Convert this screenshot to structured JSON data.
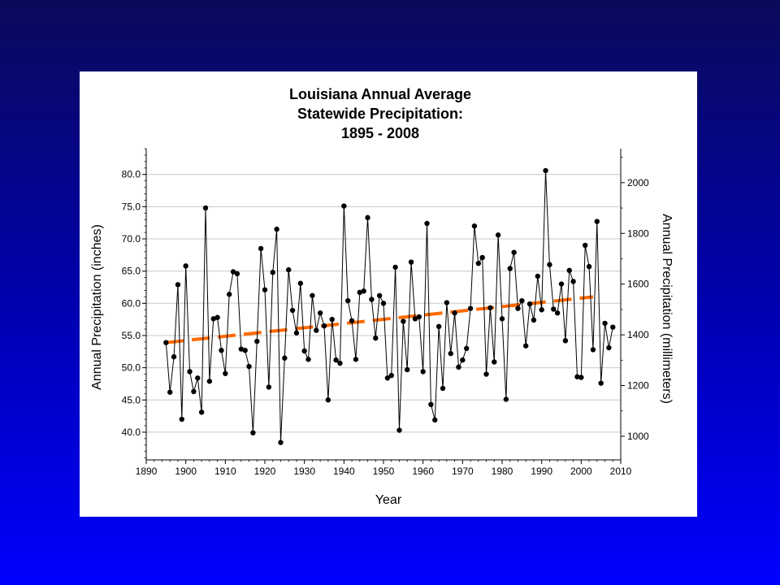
{
  "chart_data": {
    "type": "line",
    "title_lines": [
      "Louisiana Annual Average",
      "Statewide Precipitation:",
      "1895 - 2008"
    ],
    "xlabel": "Year",
    "ylabel_left": "Annual Precipitation (inches)",
    "ylabel_right": "Annual Precipitation (millimeters)",
    "xlim": [
      1890,
      2010
    ],
    "ylim_left": [
      35.7,
      84.0
    ],
    "ylim_right_mm": [
      907,
      2134
    ],
    "x_ticks": [
      1890,
      1900,
      1910,
      1920,
      1930,
      1940,
      1950,
      1960,
      1970,
      1980,
      1990,
      2000,
      2010
    ],
    "y_ticks_left": [
      "40.0",
      "45.0",
      "50.0",
      "55.0",
      "60.0",
      "65.0",
      "70.0",
      "75.0",
      "80.0"
    ],
    "y_ticks_right": [
      "1000",
      "1200",
      "1400",
      "1600",
      "1800",
      "2000"
    ],
    "grid": true,
    "series": [
      {
        "style": "line-with-markers",
        "color": "#000000",
        "x": [
          1895,
          1896,
          1897,
          1898,
          1899,
          1900,
          1901,
          1902,
          1903,
          1904,
          1905,
          1906,
          1907,
          1908,
          1909,
          1910,
          1911,
          1912,
          1913,
          1914,
          1915,
          1916,
          1917,
          1918,
          1919,
          1920,
          1921,
          1922,
          1923,
          1924,
          1925,
          1926,
          1927,
          1928,
          1929,
          1930,
          1931,
          1932,
          1933,
          1934,
          1935,
          1936,
          1937,
          1938,
          1939,
          1940,
          1941,
          1942,
          1943,
          1944,
          1945,
          1946,
          1947,
          1948,
          1949,
          1950,
          1951,
          1952,
          1953,
          1954,
          1955,
          1956,
          1957,
          1958,
          1959,
          1960,
          1961,
          1962,
          1963,
          1964,
          1965,
          1966,
          1967,
          1968,
          1969,
          1970,
          1971,
          1972,
          1973,
          1974,
          1975,
          1976,
          1977,
          1978,
          1979,
          1980,
          1981,
          1982,
          1983,
          1984,
          1985,
          1986,
          1987,
          1988,
          1989,
          1990,
          1991,
          1992,
          1993,
          1994,
          1995,
          1996,
          1997,
          1998,
          1999,
          2000,
          2001,
          2002,
          2003,
          2004,
          2005,
          2006,
          2007,
          2008
        ],
        "values": [
          53.9,
          46.2,
          51.7,
          62.9,
          42.0,
          65.8,
          49.4,
          46.3,
          48.4,
          43.1,
          74.8,
          47.9,
          57.6,
          57.8,
          52.7,
          49.1,
          61.4,
          64.9,
          64.6,
          52.9,
          52.7,
          50.2,
          39.9,
          54.1,
          68.5,
          62.1,
          47.0,
          64.8,
          71.5,
          38.4,
          51.5,
          65.2,
          58.9,
          55.4,
          63.1,
          52.6,
          51.3,
          61.2,
          55.8,
          58.5,
          56.5,
          45.0,
          57.5,
          51.2,
          50.7,
          75.1,
          60.4,
          57.3,
          51.3,
          61.7,
          61.9,
          73.3,
          60.6,
          54.6,
          61.2,
          60.0,
          48.4,
          48.8,
          65.6,
          40.3,
          57.2,
          49.7,
          66.4,
          57.6,
          57.9,
          49.4,
          72.4,
          44.3,
          41.9,
          56.4,
          46.8,
          60.1,
          52.2,
          58.5,
          50.1,
          51.2,
          53.0,
          59.2,
          72.0,
          66.2,
          67.1,
          49.0,
          59.3,
          50.9,
          70.6,
          57.6,
          45.1,
          65.4,
          67.9,
          59.2,
          60.4,
          53.4,
          59.9,
          57.4,
          64.2,
          59.0,
          80.6,
          66.0,
          59.1,
          58.5,
          63.0,
          54.2,
          65.1,
          63.4,
          48.6,
          48.5,
          69.0,
          65.7,
          52.8,
          72.7,
          47.6,
          56.9,
          53.1,
          56.3
        ]
      },
      {
        "name": "trend",
        "style": "dashed",
        "color": "#ff6a00",
        "x": [
          1895,
          2003
        ],
        "values": [
          53.9,
          61.0
        ]
      }
    ]
  },
  "colors": {
    "background_top": "#0a0a5a",
    "background_bottom": "#0000ff",
    "panel": "#ffffff",
    "grid": "#c8c8c8",
    "trend": "#ff6a00"
  }
}
